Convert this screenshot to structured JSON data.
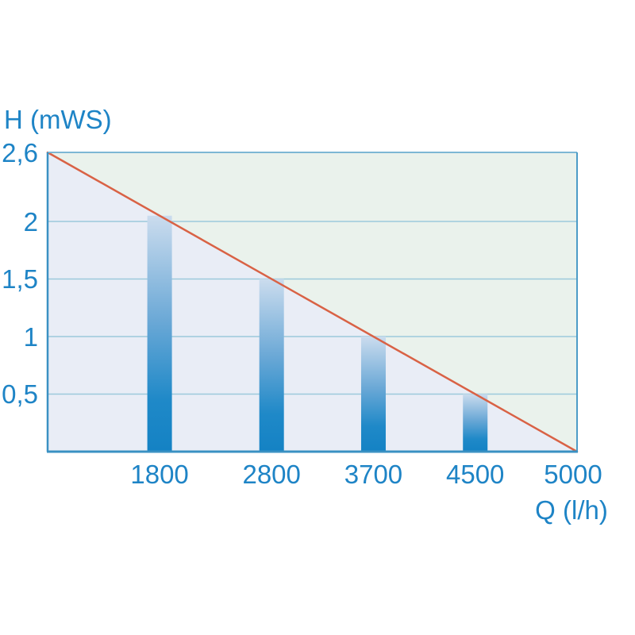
{
  "chart_data": {
    "type": "bar",
    "title": "",
    "ylabel": "H (mWS)",
    "xlabel": "Q (l/h)",
    "ylim": [
      0,
      2.6
    ],
    "xlim_q": [
      0,
      5000
    ],
    "grid": true,
    "y_ticks": [
      {
        "label": "2,6",
        "value": 2.6
      },
      {
        "label": "2",
        "value": 2.0
      },
      {
        "label": "1,5",
        "value": 1.5
      },
      {
        "label": "1",
        "value": 1.0
      },
      {
        "label": "0,5",
        "value": 0.5
      }
    ],
    "x_ticks": [
      "1800",
      "2800",
      "3700",
      "4500",
      "5000"
    ],
    "categories": [
      "1800",
      "2800",
      "3700",
      "4500"
    ],
    "values": [
      2.05,
      1.5,
      1.0,
      0.5
    ],
    "limit_line": {
      "from_q_h": [
        0,
        2.6
      ],
      "to_q_h": [
        5000,
        0
      ]
    },
    "colors": {
      "text": "#1e84c6",
      "area_above_line": "#eaf2ec",
      "area_below_line": "#e9edf6",
      "gridline": "#9ccadb",
      "axis": "#3a91c3",
      "border_right": "#4d9cc7",
      "border_top": "#7db7d4",
      "limit_line": "#d96245",
      "bar_gradient_top": "#cbdcee",
      "bar_gradient_mid": "#6aa8d6",
      "bar_gradient_bottom": "#1482c4"
    }
  }
}
